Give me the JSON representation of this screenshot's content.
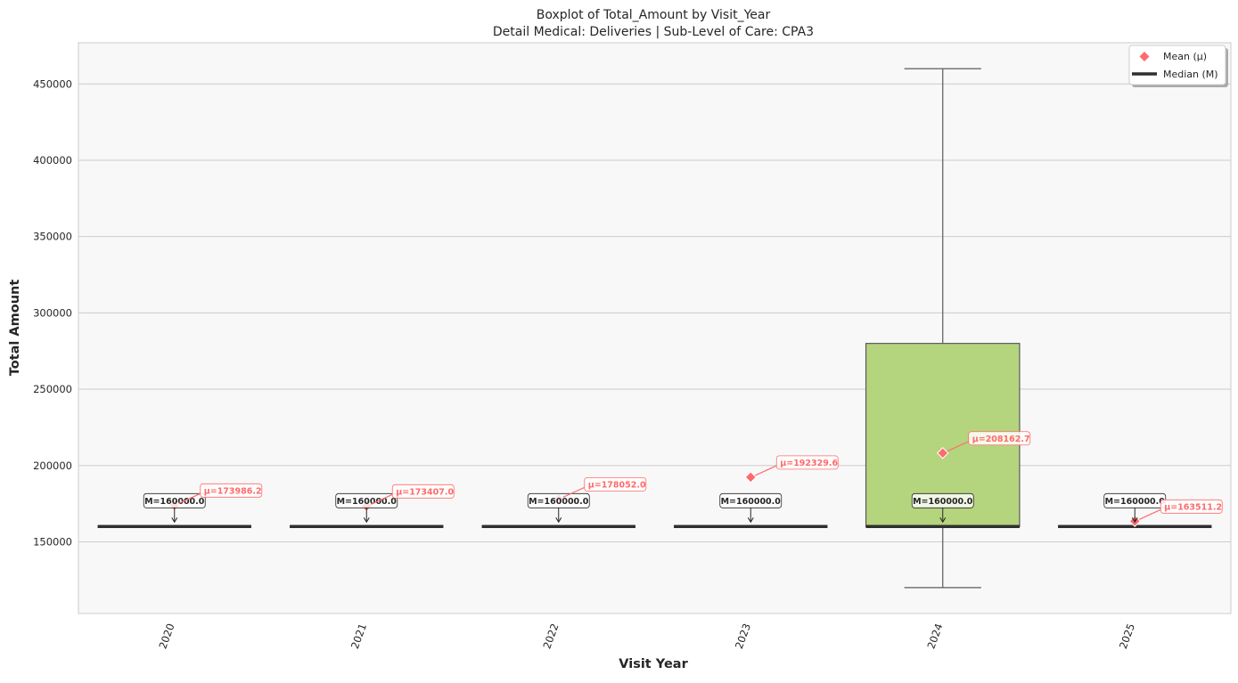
{
  "chart_data": {
    "type": "boxplot",
    "title": "Boxplot of Total_Amount by Visit_Year",
    "subtitle": "Detail Medical: Deliveries | Sub-Level of Care: CPA3",
    "xlabel": "Visit Year",
    "ylabel": "Total Amount",
    "ylim": [
      103000,
      477000
    ],
    "yticks": [
      150000,
      200000,
      250000,
      300000,
      350000,
      400000,
      450000
    ],
    "ytick_labels": [
      "150000",
      "200000",
      "250000",
      "300000",
      "350000",
      "400000",
      "450000"
    ],
    "categories": [
      "2020",
      "2021",
      "2022",
      "2023",
      "2024",
      "2025"
    ],
    "boxes": [
      {
        "category": "2020",
        "q1": 160000,
        "median": 160000,
        "q3": 160000,
        "whisker_low": 160000,
        "whisker_high": 160000,
        "mean": 173986.2
      },
      {
        "category": "2021",
        "q1": 160000,
        "median": 160000,
        "q3": 160000,
        "whisker_low": 160000,
        "whisker_high": 160000,
        "mean": 173407.0
      },
      {
        "category": "2022",
        "q1": 160000,
        "median": 160000,
        "q3": 160000,
        "whisker_low": 160000,
        "whisker_high": 160000,
        "mean": 178052.0
      },
      {
        "category": "2023",
        "q1": 160000,
        "median": 160000,
        "q3": 160000,
        "whisker_low": 160000,
        "whisker_high": 160000,
        "mean": 192329.6
      },
      {
        "category": "2024",
        "q1": 160000,
        "median": 160000,
        "q3": 280000,
        "whisker_low": 120000,
        "whisker_high": 460000,
        "mean": 208162.7
      },
      {
        "category": "2025",
        "q1": 160000,
        "median": 160000,
        "q3": 160000,
        "whisker_low": 160000,
        "whisker_high": 160000,
        "mean": 163511.2
      }
    ],
    "median_labels": [
      "M=160000.0",
      "M=160000.0",
      "M=160000.0",
      "M=160000.0",
      "M=160000.0",
      "M=160000.0"
    ],
    "mean_labels": [
      "μ=173986.2",
      "μ=173407.0",
      "μ=178052.0",
      "μ=192329.6",
      "μ=208162.7",
      "μ=163511.2"
    ],
    "legend": {
      "placement": "top-right",
      "items": [
        {
          "label": "Mean (μ)",
          "marker": "diamond"
        },
        {
          "label": "Median (M)",
          "marker": "line"
        }
      ]
    },
    "grid": true,
    "colors": {
      "box_fill": "#b5d47e",
      "median_line": "#2f2f2f",
      "mean_marker": "#ff6b6b",
      "whisker": "#5a5a5a",
      "plot_background": "#f8f8f8",
      "grid": "#cccccc"
    }
  }
}
